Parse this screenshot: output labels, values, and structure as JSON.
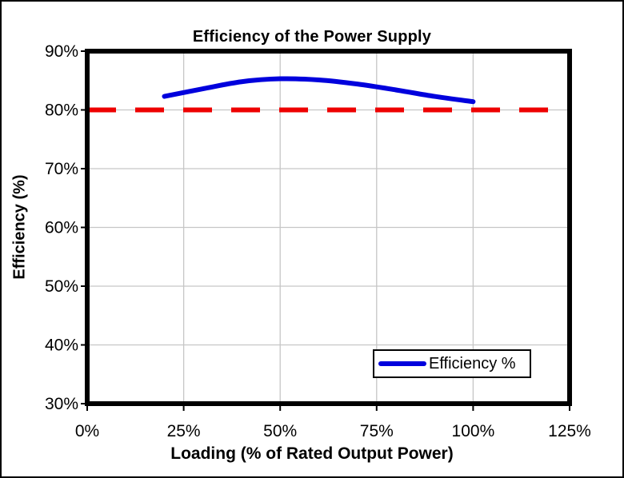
{
  "figure": {
    "title": "Efficiency of the Power Supply"
  },
  "legend": {
    "items": [
      {
        "label": "Efficiency %",
        "color": "#0000DD"
      }
    ]
  },
  "colors": {
    "efficiency_line": "#0000DD",
    "threshold_line": "#EE0000",
    "gridline": "#C6C6C6",
    "axis": "#000000",
    "background": "#FFFFFF"
  },
  "chart_data": {
    "type": "line",
    "title": "Efficiency of the Power Supply",
    "xlabel": "Loading (% of Rated Output Power)",
    "ylabel": "Efficiency (%)",
    "xlim": [
      0,
      125
    ],
    "ylim": [
      30,
      90
    ],
    "x_tick_values": [
      0,
      25,
      50,
      75,
      100,
      125
    ],
    "x_tick_labels": [
      "0%",
      "25%",
      "50%",
      "75%",
      "100%",
      "125%"
    ],
    "y_tick_values": [
      30,
      40,
      50,
      60,
      70,
      80,
      90
    ],
    "y_tick_labels": [
      "30%",
      "40%",
      "50%",
      "60%",
      "70%",
      "80%",
      "90%"
    ],
    "grid": true,
    "legend_position": "inside-bottom-right",
    "series": [
      {
        "name": "Efficiency %",
        "style": "solid",
        "smooth": true,
        "color": "#0000DD",
        "width": 6,
        "in_legend": true,
        "x": [
          20,
          30,
          40,
          50,
          60,
          70,
          80,
          90,
          100
        ],
        "y": [
          82.3,
          83.6,
          84.8,
          85.3,
          85.1,
          84.4,
          83.4,
          82.3,
          81.4
        ]
      },
      {
        "name": "80% reference line",
        "style": "dashed",
        "smooth": false,
        "color": "#EE0000",
        "width": 6,
        "in_legend": false,
        "x": [
          0,
          125
        ],
        "y": [
          80,
          80
        ]
      }
    ]
  }
}
